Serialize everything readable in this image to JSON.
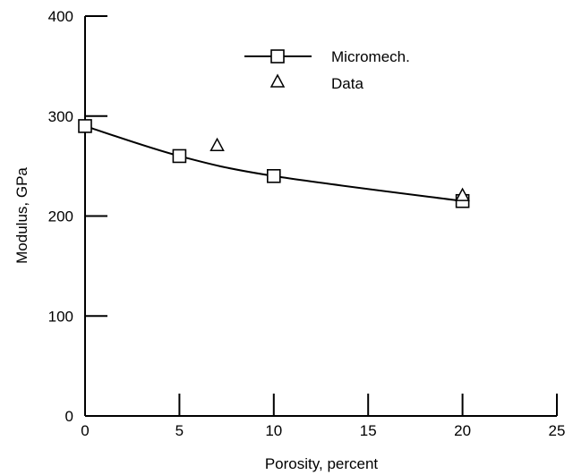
{
  "chart_data": {
    "type": "line",
    "xlabel": "Porosity, percent",
    "ylabel": "Modulus, GPa",
    "xlim": [
      0,
      25
    ],
    "ylim": [
      0,
      400
    ],
    "xticks": [
      0,
      5,
      10,
      15,
      20,
      25
    ],
    "yticks": [
      0,
      100,
      200,
      300,
      400
    ],
    "grid": false,
    "legend": {
      "placement": "top-center",
      "entries": [
        "Micromech.",
        "Data"
      ]
    },
    "series": [
      {
        "name": "Micromech.",
        "marker": "square",
        "line": true,
        "x": [
          0,
          5,
          10,
          20
        ],
        "y": [
          290,
          260,
          240,
          215
        ]
      },
      {
        "name": "Data",
        "marker": "triangle",
        "line": false,
        "x": [
          7,
          20
        ],
        "y": [
          270,
          220
        ]
      }
    ]
  }
}
